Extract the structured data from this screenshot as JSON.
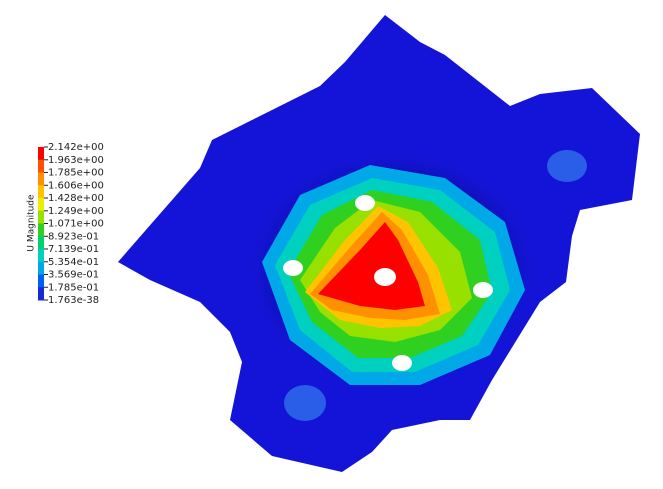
{
  "colorbar": {
    "title": "U Magnitude",
    "ticks": [
      {
        "value": 2.142,
        "label": "2.142e+00"
      },
      {
        "value": 1.963,
        "label": "1.963e+00"
      },
      {
        "value": 1.785,
        "label": "1.785e+00"
      },
      {
        "value": 1.606,
        "label": "1.606e+00"
      },
      {
        "value": 1.428,
        "label": "1.428e+00"
      },
      {
        "value": 1.249,
        "label": "1.249e+00"
      },
      {
        "value": 1.071,
        "label": "1.071e+00"
      },
      {
        "value": 0.8923,
        "label": "8.923e-01"
      },
      {
        "value": 0.7139,
        "label": "7.139e-01"
      },
      {
        "value": 0.5354,
        "label": "5.354e-01"
      },
      {
        "value": 0.3569,
        "label": "3.569e-01"
      },
      {
        "value": 0.1785,
        "label": "1.785e-01"
      },
      {
        "value": 1.763e-38,
        "label": "1.763e-38"
      }
    ],
    "colors": [
      "#ff0000",
      "#ff5000",
      "#ff9000",
      "#ffc400",
      "#e8f000",
      "#98e000",
      "#30d020",
      "#00d070",
      "#00d0c0",
      "#00a8e8",
      "#0060f0",
      "#1828d8"
    ]
  }
}
